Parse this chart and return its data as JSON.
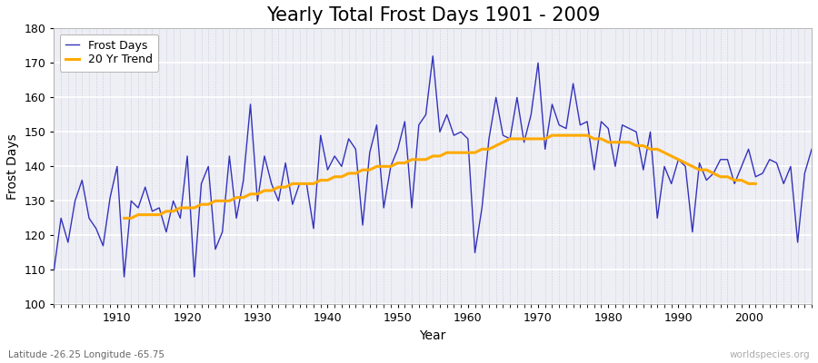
{
  "title": "Yearly Total Frost Days 1901 - 2009",
  "xlabel": "Year",
  "ylabel": "Frost Days",
  "subtitle": "Latitude -26.25 Longitude -65.75",
  "watermark": "worldspecies.org",
  "years": [
    1901,
    1902,
    1903,
    1904,
    1905,
    1906,
    1907,
    1908,
    1909,
    1910,
    1911,
    1912,
    1913,
    1914,
    1915,
    1916,
    1917,
    1918,
    1919,
    1920,
    1921,
    1922,
    1923,
    1924,
    1925,
    1926,
    1927,
    1928,
    1929,
    1930,
    1931,
    1932,
    1933,
    1934,
    1935,
    1936,
    1937,
    1938,
    1939,
    1940,
    1941,
    1942,
    1943,
    1944,
    1945,
    1946,
    1947,
    1948,
    1949,
    1950,
    1951,
    1952,
    1953,
    1954,
    1955,
    1956,
    1957,
    1958,
    1959,
    1960,
    1961,
    1962,
    1963,
    1964,
    1965,
    1966,
    1967,
    1968,
    1969,
    1970,
    1971,
    1972,
    1973,
    1974,
    1975,
    1976,
    1977,
    1978,
    1979,
    1980,
    1981,
    1982,
    1983,
    1984,
    1985,
    1986,
    1987,
    1988,
    1989,
    1990,
    1991,
    1992,
    1993,
    1994,
    1995,
    1996,
    1997,
    1998,
    1999,
    2000,
    2001,
    2002,
    2003,
    2004,
    2005,
    2006,
    2007,
    2008,
    2009
  ],
  "frost_days": [
    110,
    125,
    118,
    130,
    136,
    125,
    122,
    117,
    131,
    140,
    108,
    130,
    128,
    134,
    127,
    128,
    121,
    130,
    125,
    143,
    108,
    135,
    140,
    116,
    121,
    143,
    125,
    136,
    158,
    130,
    143,
    135,
    130,
    141,
    129,
    135,
    135,
    122,
    149,
    139,
    143,
    140,
    148,
    145,
    123,
    144,
    152,
    128,
    140,
    145,
    153,
    128,
    152,
    155,
    172,
    150,
    155,
    149,
    150,
    148,
    115,
    128,
    148,
    160,
    149,
    148,
    160,
    147,
    155,
    170,
    145,
    158,
    152,
    151,
    164,
    152,
    153,
    139,
    153,
    151,
    140,
    152,
    151,
    150,
    139,
    150,
    125,
    140,
    135,
    142,
    140,
    121,
    141,
    136,
    138,
    142,
    142,
    135,
    140,
    145,
    137,
    138,
    142,
    141,
    135,
    140,
    118,
    138,
    145
  ],
  "trend": [
    null,
    null,
    null,
    null,
    null,
    null,
    null,
    null,
    null,
    null,
    125,
    125,
    126,
    126,
    126,
    126,
    127,
    127,
    128,
    128,
    128,
    129,
    129,
    130,
    130,
    130,
    131,
    131,
    132,
    132,
    133,
    133,
    134,
    134,
    135,
    135,
    135,
    135,
    136,
    136,
    137,
    137,
    138,
    138,
    139,
    139,
    140,
    140,
    140,
    141,
    141,
    142,
    142,
    142,
    143,
    143,
    144,
    144,
    144,
    144,
    144,
    145,
    145,
    146,
    147,
    148,
    148,
    148,
    148,
    148,
    148,
    149,
    149,
    149,
    149,
    149,
    149,
    148,
    148,
    147,
    147,
    147,
    147,
    146,
    146,
    145,
    145,
    144,
    143,
    142,
    141,
    140,
    139,
    139,
    138,
    137,
    137,
    136,
    136,
    135,
    135,
    null,
    null,
    null,
    null,
    null,
    null,
    null,
    null
  ],
  "line_color": "#3333bb",
  "trend_color": "#ffaa00",
  "bg_color": "#eeeef5",
  "plot_bg_color": "#eeeef5",
  "ylim": [
    100,
    180
  ],
  "yticks": [
    100,
    110,
    120,
    130,
    140,
    150,
    160,
    170,
    180
  ],
  "xlim": [
    1901,
    2009
  ],
  "title_fontsize": 15,
  "label_fontsize": 10,
  "tick_fontsize": 9
}
